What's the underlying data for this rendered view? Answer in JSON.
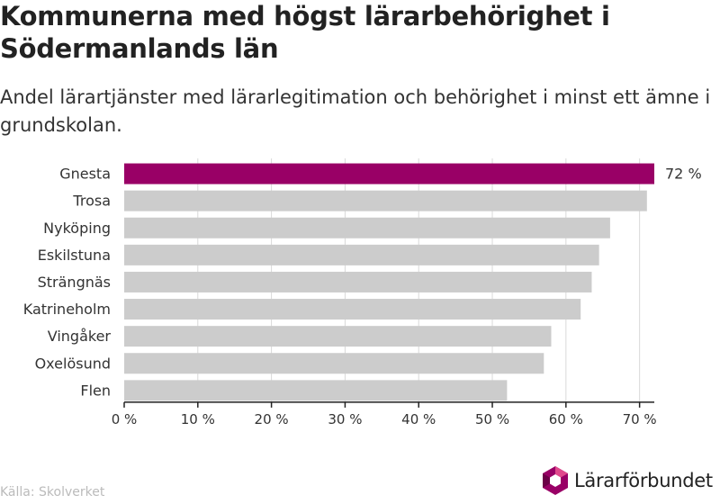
{
  "title": "Kommunerna med högst lärarbehörighet i Södermanlands län",
  "subtitle": "Andel lärartjänster med lärarlegitimation och behörighet i minst ett ämne i grundskolan.",
  "source": "Källa: Skolverket",
  "logo_text": "Lärarförbundet",
  "colors": {
    "highlight": "#990066",
    "bar": "#cccccc",
    "grid": "#d9d9d9",
    "axis": "#222222"
  },
  "chart_data": {
    "type": "bar",
    "orientation": "horizontal",
    "categories": [
      "Gnesta",
      "Trosa",
      "Nyköping",
      "Eskilstuna",
      "Strängnäs",
      "Katrineholm",
      "Vingåker",
      "Oxelösund",
      "Flen"
    ],
    "values": [
      72,
      71,
      66,
      64.5,
      63.5,
      62,
      58,
      57,
      52
    ],
    "highlight_index": 0,
    "data_labels": [
      {
        "index": 0,
        "text": "72 %"
      }
    ],
    "xlim": [
      0,
      72
    ],
    "xticks": [
      0,
      10,
      20,
      30,
      40,
      50,
      60,
      70
    ],
    "xtick_labels": [
      "0 %",
      "10 %",
      "20 %",
      "30 %",
      "40 %",
      "50 %",
      "60 %",
      "70 %"
    ],
    "grid": true
  }
}
